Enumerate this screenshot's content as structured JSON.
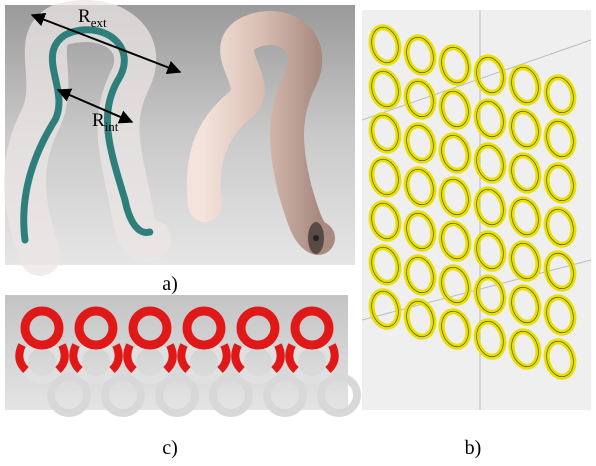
{
  "panel_a": {
    "label": "a)",
    "r_ext": {
      "symbol": "R",
      "subscript": "ext"
    },
    "r_int": {
      "symbol": "R",
      "subscript": "int"
    }
  },
  "panel_b": {
    "label": "b)"
  },
  "panel_c": {
    "label": "c)"
  }
}
